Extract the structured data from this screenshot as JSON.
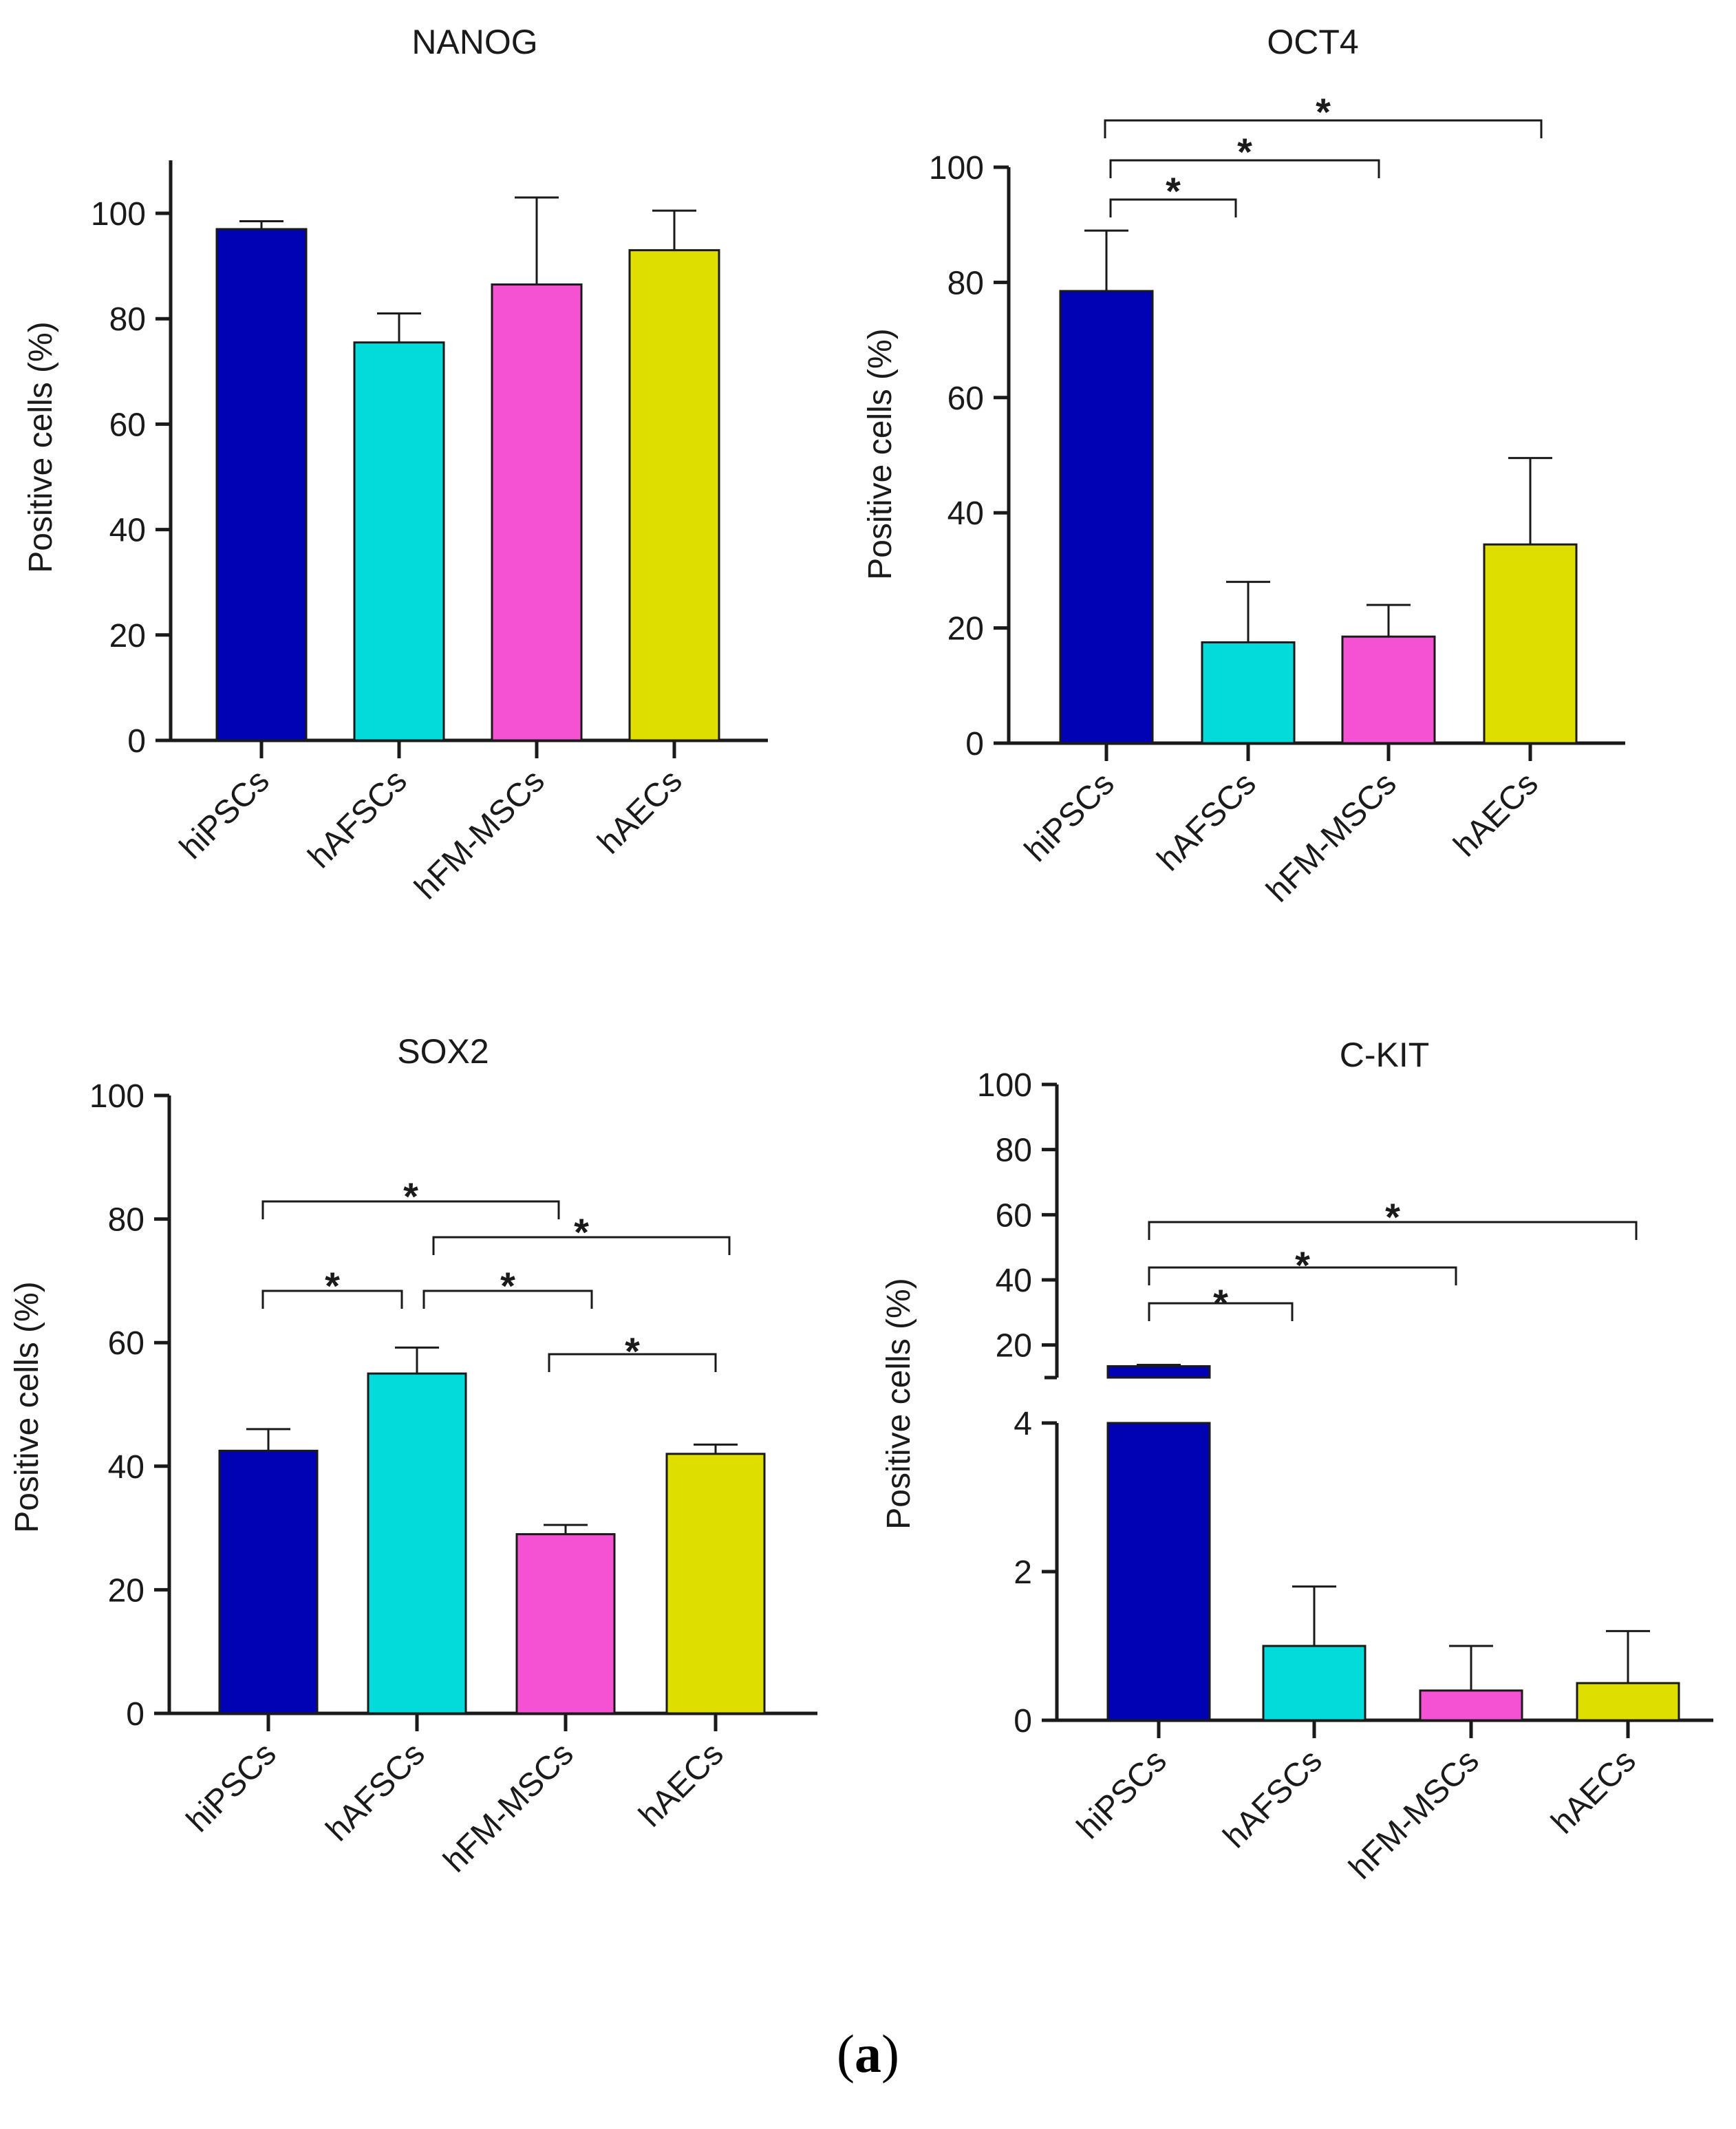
{
  "figure_label": {
    "open": "(",
    "letter": "a",
    "close": ")"
  },
  "chart_data": [
    {
      "type": "bar",
      "title": "NANOG",
      "ylabel": "Positive cells (%)",
      "categories": [
        "hiPSCs",
        "hAFSCs",
        "hFM-MSCs",
        "hAECs"
      ],
      "values": [
        97,
        75.5,
        86.5,
        93
      ],
      "errors": [
        1.5,
        5.5,
        16.5,
        7.5
      ],
      "colors": [
        "#0202b5",
        "#03dbdb",
        "#f551d3",
        "#dede00"
      ],
      "ylim": [
        0,
        110
      ],
      "yticks": [
        0,
        20,
        40,
        60,
        80,
        100
      ],
      "significance": []
    },
    {
      "type": "bar",
      "title": "OCT4",
      "ylabel": "Positive cells (%)",
      "categories": [
        "hiPSCs",
        "hAFSCs",
        "hFM-MSCs",
        "hAECs"
      ],
      "values": [
        78.5,
        17.5,
        18.5,
        34.5
      ],
      "errors": [
        10.5,
        10.5,
        5.5,
        15
      ],
      "colors": [
        "#0202b5",
        "#03dbdb",
        "#f551d3",
        "#dede00"
      ],
      "ylim": [
        0,
        100
      ],
      "yticks": [
        0,
        20,
        40,
        60,
        80,
        100
      ],
      "significance": [
        {
          "from": 0,
          "to": 1,
          "label": "*"
        },
        {
          "from": 0,
          "to": 2,
          "label": "*"
        },
        {
          "from": 0,
          "to": 3,
          "label": "*"
        }
      ]
    },
    {
      "type": "bar",
      "title": "SOX2",
      "ylabel": "Positive cells (%)",
      "categories": [
        "hiPSCs",
        "hAFSCs",
        "hFM-MSCs",
        "hAECs"
      ],
      "values": [
        42.5,
        55,
        29,
        42
      ],
      "errors": [
        3.5,
        4.2,
        1.5,
        1.5
      ],
      "colors": [
        "#0202b5",
        "#03dbdb",
        "#f551d3",
        "#dede00"
      ],
      "ylim": [
        0,
        100
      ],
      "yticks": [
        0,
        20,
        40,
        60,
        80,
        100
      ],
      "significance": [
        {
          "from": 0,
          "to": 2,
          "label": "*"
        },
        {
          "from": 1,
          "to": 3,
          "label": "*"
        },
        {
          "from": 0,
          "to": 1,
          "label": "*"
        },
        {
          "from": 1,
          "to": 2,
          "label": "*"
        },
        {
          "from": 2,
          "to": 3,
          "label": "*"
        }
      ]
    },
    {
      "type": "bar",
      "title": "C-KIT",
      "ylabel": "Positive cells (%)",
      "categories": [
        "hiPSCs",
        "hAFSCs",
        "hFM-MSCs",
        "hAECs"
      ],
      "values": [
        13.5,
        1,
        0.4,
        0.5
      ],
      "errors": [
        0.4,
        0.8,
        0.6,
        0.7
      ],
      "colors": [
        "#0202b5",
        "#03dbdb",
        "#f551d3",
        "#dede00"
      ],
      "broken_axis": {
        "lower_range": [
          0,
          4
        ],
        "upper_range": [
          10,
          100
        ]
      },
      "yticks_lower": [
        0,
        2,
        4
      ],
      "yticks_upper": [
        20,
        40,
        60,
        80,
        100
      ],
      "significance": [
        {
          "from": 0,
          "to": 1,
          "label": "*"
        },
        {
          "from": 0,
          "to": 2,
          "label": "*"
        },
        {
          "from": 0,
          "to": 3,
          "label": "*"
        }
      ]
    }
  ]
}
